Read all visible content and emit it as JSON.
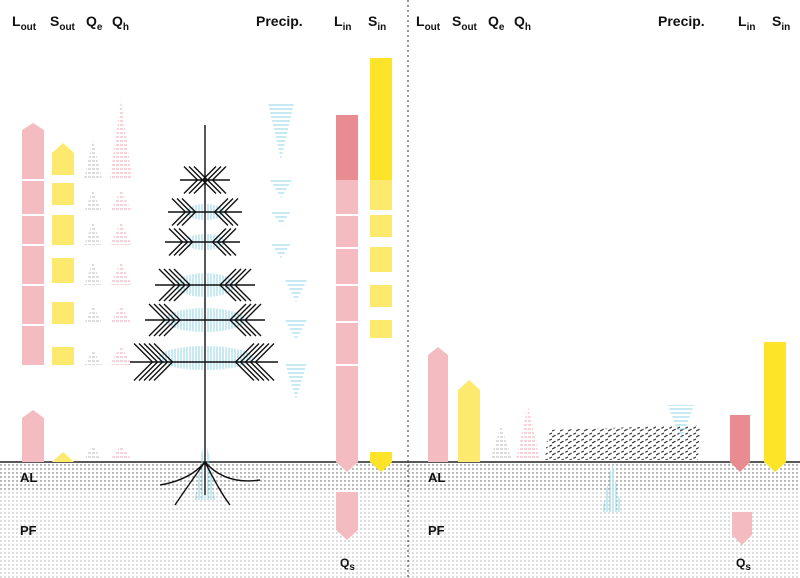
{
  "panels": [
    {
      "headers": [
        {
          "main": "L",
          "sub": "out"
        },
        {
          "main": "S",
          "sub": "out"
        },
        {
          "main": "Q",
          "sub": "e"
        },
        {
          "main": "Q",
          "sub": "h"
        }
      ],
      "precip": "Precip.",
      "inputs": [
        {
          "main": "L",
          "sub": "in"
        },
        {
          "main": "S",
          "sub": "in"
        }
      ],
      "layers": [
        "AL",
        "PF"
      ],
      "storage": {
        "main": "Q",
        "sub": "s"
      }
    },
    {
      "headers": [
        {
          "main": "L",
          "sub": "out"
        },
        {
          "main": "S",
          "sub": "out"
        },
        {
          "main": "Q",
          "sub": "e"
        },
        {
          "main": "Q",
          "sub": "h"
        }
      ],
      "precip": "Precip.",
      "inputs": [
        {
          "main": "L",
          "sub": "in"
        },
        {
          "main": "S",
          "sub": "in"
        }
      ],
      "layers": [
        "AL",
        "PF"
      ],
      "storage": {
        "main": "Q",
        "sub": "s"
      }
    }
  ]
}
